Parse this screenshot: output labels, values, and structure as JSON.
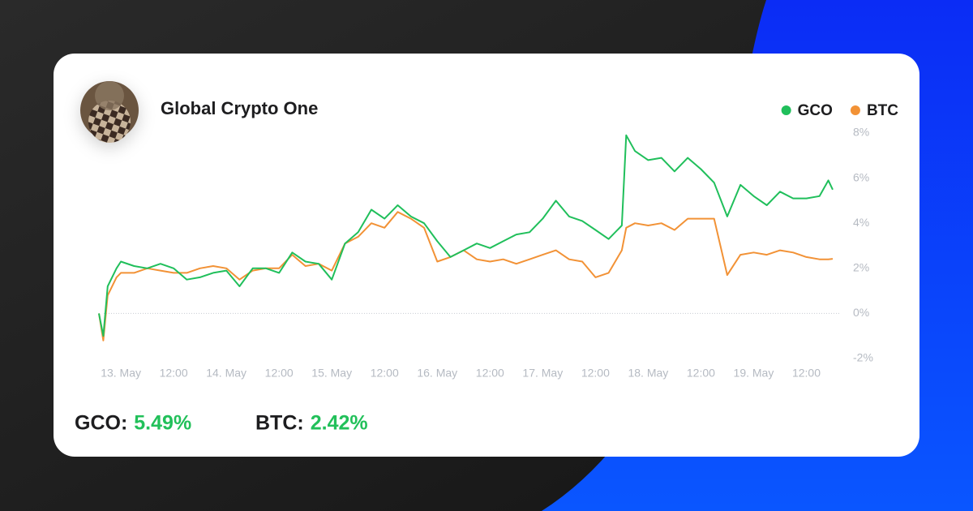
{
  "chart_data": {
    "type": "line",
    "title": "Global Crypto One",
    "x": [
      -5,
      -4,
      -3,
      -1,
      0,
      3,
      6,
      9,
      12,
      15,
      18,
      21,
      24,
      27,
      30,
      33,
      36,
      39,
      42,
      45,
      48,
      51,
      54,
      57,
      60,
      63,
      66,
      69,
      72,
      75,
      78,
      81,
      84,
      87,
      90,
      93,
      96,
      99,
      102,
      105,
      108,
      111,
      114,
      115,
      117,
      120,
      123,
      126,
      129,
      132,
      135,
      138,
      141,
      144,
      147,
      150,
      153,
      156,
      159,
      161,
      162
    ],
    "series": [
      {
        "name": "GCO",
        "color": "#20bf5b",
        "values": [
          0.0,
          -1.0,
          1.2,
          2.0,
          2.3,
          2.1,
          2.0,
          2.2,
          2.0,
          1.5,
          1.6,
          1.8,
          1.9,
          1.2,
          2.0,
          2.0,
          1.8,
          2.7,
          2.3,
          2.2,
          1.5,
          3.1,
          3.6,
          4.6,
          4.2,
          4.8,
          4.3,
          4.0,
          3.2,
          2.5,
          2.8,
          3.1,
          2.9,
          3.2,
          3.5,
          3.6,
          4.2,
          5.0,
          4.3,
          4.1,
          3.7,
          3.3,
          3.9,
          7.9,
          7.2,
          6.8,
          6.9,
          6.3,
          6.9,
          6.4,
          5.8,
          4.3,
          5.7,
          5.2,
          4.8,
          5.4,
          5.1,
          5.1,
          5.2,
          5.9,
          5.49
        ]
      },
      {
        "name": "BTC",
        "color": "#f29236",
        "values": [
          0.0,
          -1.2,
          0.8,
          1.6,
          1.8,
          1.8,
          2.0,
          1.9,
          1.8,
          1.8,
          2.0,
          2.1,
          2.0,
          1.5,
          1.9,
          2.0,
          2.0,
          2.6,
          2.1,
          2.2,
          1.9,
          3.1,
          3.4,
          4.0,
          3.8,
          4.5,
          4.2,
          3.8,
          2.3,
          2.5,
          2.8,
          2.4,
          2.3,
          2.4,
          2.2,
          2.4,
          2.6,
          2.8,
          2.4,
          2.3,
          1.6,
          1.8,
          2.8,
          3.8,
          4.0,
          3.9,
          4.0,
          3.7,
          4.2,
          4.2,
          4.2,
          1.7,
          2.6,
          2.7,
          2.6,
          2.8,
          2.7,
          2.5,
          2.4,
          2.4,
          2.42
        ]
      }
    ],
    "xlim": [
      -5,
      162
    ],
    "xticks": [
      {
        "value": 0,
        "label": "13. May"
      },
      {
        "value": 12,
        "label": "12:00"
      },
      {
        "value": 24,
        "label": "14. May"
      },
      {
        "value": 36,
        "label": "12:00"
      },
      {
        "value": 48,
        "label": "15. May"
      },
      {
        "value": 60,
        "label": "12:00"
      },
      {
        "value": 72,
        "label": "16. May"
      },
      {
        "value": 84,
        "label": "12:00"
      },
      {
        "value": 96,
        "label": "17. May"
      },
      {
        "value": 108,
        "label": "12:00"
      },
      {
        "value": 120,
        "label": "18. May"
      },
      {
        "value": 132,
        "label": "12:00"
      },
      {
        "value": 144,
        "label": "19. May"
      },
      {
        "value": 156,
        "label": "12:00"
      }
    ],
    "ylim": [
      -2,
      8
    ],
    "yticks": [
      {
        "value": -2,
        "label": "-2%"
      },
      {
        "value": 0,
        "label": "0%"
      },
      {
        "value": 2,
        "label": "2%"
      },
      {
        "value": 4,
        "label": "4%"
      },
      {
        "value": 6,
        "label": "6%"
      },
      {
        "value": 8,
        "label": "8%"
      }
    ],
    "zero_line": true,
    "legend": "top-right"
  },
  "summary": [
    {
      "label": "GCO:",
      "value": "5.49%"
    },
    {
      "label": "BTC:",
      "value": "2.42%"
    }
  ]
}
